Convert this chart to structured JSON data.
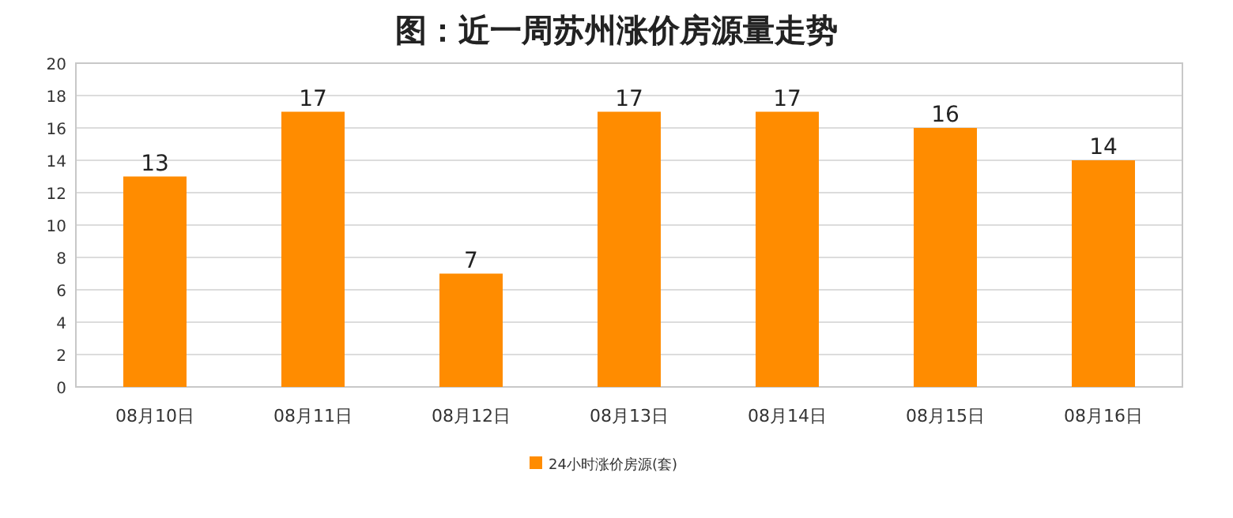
{
  "chart_data": {
    "type": "bar",
    "title": "图：近一周苏州涨价房源量走势",
    "categories": [
      "08月10日",
      "08月11日",
      "08月12日",
      "08月13日",
      "08月14日",
      "08月15日",
      "08月16日"
    ],
    "series": [
      {
        "name": "24小时涨价房源(套)",
        "color": "#ff8c00",
        "values": [
          13,
          17,
          7,
          17,
          17,
          16,
          14
        ]
      }
    ],
    "ylim": [
      0,
      20
    ],
    "yticks": [
      0,
      2,
      4,
      6,
      8,
      10,
      12,
      14,
      16,
      18,
      20
    ],
    "grid": "y",
    "legend": "bottom",
    "data_labels": true
  }
}
